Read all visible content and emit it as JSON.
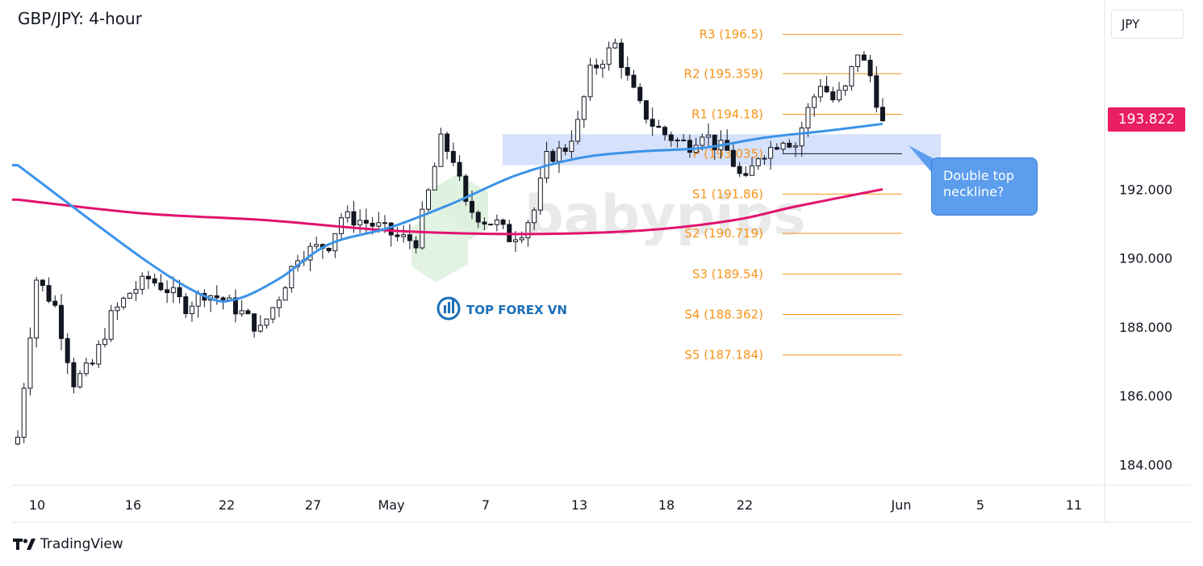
{
  "title": "GBP/JPY: 4-hour",
  "currency": "JPY",
  "current_price": "193.822",
  "callout": {
    "line1": "Double top",
    "line2": "neckline?"
  },
  "watermark": "babypips",
  "sublogo": "TOP FOREX VN",
  "footer": "TradingView",
  "colors": {
    "candle": "#131722",
    "ma_fast": "#3b93e8",
    "ma_slow": "#e2126e",
    "pivot": "#f7931a",
    "zone": "#cfdcfa",
    "price_label": "#e91e63",
    "callout": "#5c9ded"
  },
  "chart_data": {
    "type": "candlestick",
    "ylim": [
      183.4,
      197.5
    ],
    "y_ticks": [
      "184.000",
      "186.000",
      "188.000",
      "190.000",
      "192.000"
    ],
    "x_ticks": [
      "10",
      "16",
      "22",
      "27",
      "May",
      "7",
      "13",
      "18",
      "22",
      "Jun",
      "5",
      "11"
    ],
    "pivot_levels": [
      {
        "label": "R3 (196.5)",
        "value": 196.5
      },
      {
        "label": "R2 (195.359)",
        "value": 195.359
      },
      {
        "label": "R1 (194.18)",
        "value": 194.18
      },
      {
        "label": "P (193.035)",
        "value": 193.035
      },
      {
        "label": "S1 (191.86)",
        "value": 191.86
      },
      {
        "label": "S2 (190.719)",
        "value": 190.719
      },
      {
        "label": "S3 (189.54)",
        "value": 189.54
      },
      {
        "label": "S4 (188.362)",
        "value": 188.362
      },
      {
        "label": "S5 (187.184)",
        "value": 187.184
      }
    ],
    "neckline_zone": [
      192.7,
      193.6
    ],
    "close_path": [
      [
        0,
        184.8
      ],
      [
        3,
        189.4
      ],
      [
        6,
        188.6
      ],
      [
        9,
        186.4
      ],
      [
        12,
        186.9
      ],
      [
        15,
        188.3
      ],
      [
        18,
        189.0
      ],
      [
        21,
        189.4
      ],
      [
        24,
        189.1
      ],
      [
        27,
        188.6
      ],
      [
        30,
        189.0
      ],
      [
        33,
        188.8
      ],
      [
        36,
        188.4
      ],
      [
        39,
        187.9
      ],
      [
        42,
        188.9
      ],
      [
        45,
        190.1
      ],
      [
        48,
        190.3
      ],
      [
        50,
        190.4
      ],
      [
        52,
        191.2
      ],
      [
        55,
        191.1
      ],
      [
        58,
        190.9
      ],
      [
        61,
        190.6
      ],
      [
        64,
        190.5
      ],
      [
        66,
        191.9
      ],
      [
        68,
        193.4
      ],
      [
        70,
        192.9
      ],
      [
        72,
        191.5
      ],
      [
        75,
        191.1
      ],
      [
        77,
        191.0
      ],
      [
        79,
        190.6
      ],
      [
        81,
        190.8
      ],
      [
        83,
        191.4
      ],
      [
        85,
        192.9
      ],
      [
        88,
        193.2
      ],
      [
        90,
        193.9
      ],
      [
        92,
        195.4
      ],
      [
        94,
        195.8
      ],
      [
        96,
        196.2
      ],
      [
        98,
        195.2
      ],
      [
        100,
        194.4
      ],
      [
        102,
        193.9
      ],
      [
        104,
        193.6
      ],
      [
        106,
        193.4
      ],
      [
        108,
        193.3
      ],
      [
        110,
        193.7
      ],
      [
        112,
        193.3
      ],
      [
        114,
        193.1
      ],
      [
        116,
        192.4
      ],
      [
        117,
        192.2
      ],
      [
        119,
        193.0
      ],
      [
        121,
        193.2
      ],
      [
        123,
        193.5
      ],
      [
        125,
        193.3
      ],
      [
        127,
        194.3
      ],
      [
        129,
        195.1
      ],
      [
        131,
        194.6
      ],
      [
        133,
        194.9
      ],
      [
        135,
        196.0
      ],
      [
        137,
        195.3
      ],
      [
        139,
        193.9
      ]
    ],
    "ma_fast": [
      [
        0,
        192.7
      ],
      [
        20,
        190.0
      ],
      [
        30,
        188.9
      ],
      [
        35,
        188.8
      ],
      [
        42,
        189.4
      ],
      [
        50,
        190.4
      ],
      [
        60,
        190.9
      ],
      [
        70,
        191.6
      ],
      [
        80,
        192.4
      ],
      [
        90,
        192.9
      ],
      [
        100,
        193.1
      ],
      [
        110,
        193.2
      ],
      [
        120,
        193.5
      ],
      [
        130,
        193.7
      ],
      [
        139,
        193.9
      ]
    ],
    "ma_slow": [
      [
        0,
        191.7
      ],
      [
        20,
        191.3
      ],
      [
        40,
        191.1
      ],
      [
        60,
        190.8
      ],
      [
        80,
        190.7
      ],
      [
        100,
        190.8
      ],
      [
        115,
        191.1
      ],
      [
        125,
        191.5
      ],
      [
        139,
        192.0
      ]
    ]
  }
}
